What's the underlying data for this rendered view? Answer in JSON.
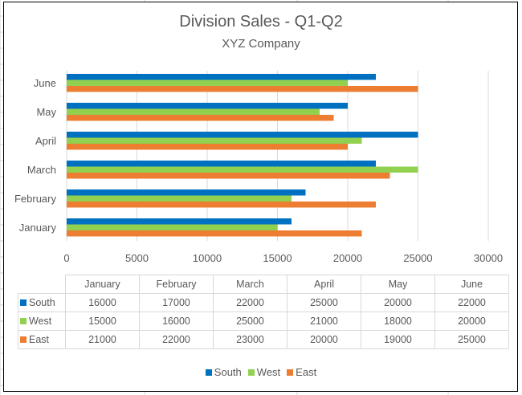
{
  "chart_data": {
    "type": "bar",
    "orientation": "horizontal",
    "title": "Division Sales - Q1-Q2",
    "subtitle": "XYZ Company",
    "categories": [
      "January",
      "February",
      "March",
      "April",
      "May",
      "June"
    ],
    "series": [
      {
        "name": "South",
        "color": "#0070C0",
        "values": [
          16000,
          17000,
          22000,
          25000,
          20000,
          22000
        ]
      },
      {
        "name": "West",
        "color": "#92D050",
        "values": [
          15000,
          16000,
          25000,
          21000,
          18000,
          20000
        ]
      },
      {
        "name": "East",
        "color": "#ED7D31",
        "values": [
          21000,
          22000,
          23000,
          20000,
          19000,
          25000
        ]
      }
    ],
    "xlim": [
      0,
      30000
    ],
    "xticks": [
      "0",
      "5000",
      "10000",
      "15000",
      "20000",
      "25000",
      "30000"
    ],
    "grid": true,
    "legend": "bottom",
    "data_table": true
  }
}
